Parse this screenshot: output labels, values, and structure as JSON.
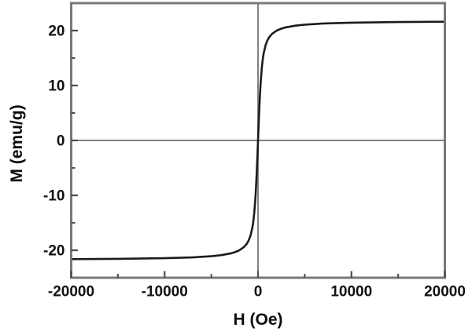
{
  "figure": {
    "background": "#ffffff"
  },
  "chart_data": {
    "type": "line",
    "title": "",
    "xlabel": "H (Oe)",
    "ylabel": "M (emu/g)",
    "xlim": [
      -20000,
      20000
    ],
    "ylim": [
      -25,
      25
    ],
    "grid": "off",
    "legend": "none",
    "x_major_ticks": [
      -20000,
      -10000,
      0,
      10000,
      20000
    ],
    "x_major_tick_labels": [
      "-20000",
      "-10000",
      "0",
      "10000",
      "20000"
    ],
    "x_minor_ticks": [
      -15000,
      -5000,
      5000,
      15000
    ],
    "y_major_ticks": [
      -20,
      -10,
      0,
      10,
      20
    ],
    "y_major_tick_labels": [
      "-20",
      "-10",
      "0",
      "10",
      "20"
    ],
    "y_minor_ticks": [
      -15,
      -5,
      5,
      15
    ],
    "reference_lines": {
      "vertical_at_x": 0,
      "horizontal_at_y": 0
    },
    "saturation_magnetization_emu_g": 21.6,
    "coercivity_oe": 0,
    "series": [
      {
        "name": "magnetization-curve",
        "points": [
          [
            -20000,
            -21.62
          ],
          [
            -15000,
            -21.56
          ],
          [
            -10000,
            -21.44
          ],
          [
            -7000,
            -21.29
          ],
          [
            -5000,
            -21.08
          ],
          [
            -4000,
            -20.9
          ],
          [
            -3000,
            -20.6
          ],
          [
            -2500,
            -20.36
          ],
          [
            -2000,
            -20.0
          ],
          [
            -1500,
            -19.4
          ],
          [
            -1200,
            -18.8
          ],
          [
            -1000,
            -18.21
          ],
          [
            -800,
            -17.3
          ],
          [
            -600,
            -15.84
          ],
          [
            -500,
            -14.71
          ],
          [
            -400,
            -13.14
          ],
          [
            -300,
            -10.95
          ],
          [
            -250,
            -9.63
          ],
          [
            -200,
            -8.05
          ],
          [
            -150,
            -6.27
          ],
          [
            -100,
            -4.29
          ],
          [
            -50,
            -2.19
          ],
          [
            0,
            0
          ],
          [
            50,
            2.19
          ],
          [
            100,
            4.29
          ],
          [
            150,
            6.27
          ],
          [
            200,
            8.05
          ],
          [
            250,
            9.63
          ],
          [
            300,
            10.95
          ],
          [
            400,
            13.14
          ],
          [
            500,
            14.71
          ],
          [
            600,
            15.84
          ],
          [
            800,
            17.3
          ],
          [
            1000,
            18.21
          ],
          [
            1200,
            18.8
          ],
          [
            1500,
            19.4
          ],
          [
            2000,
            20.0
          ],
          [
            2500,
            20.36
          ],
          [
            3000,
            20.6
          ],
          [
            4000,
            20.9
          ],
          [
            5000,
            21.08
          ],
          [
            7000,
            21.29
          ],
          [
            10000,
            21.44
          ],
          [
            15000,
            21.56
          ],
          [
            20000,
            21.62
          ]
        ]
      }
    ],
    "colors": {
      "curve": "#1b1b1b",
      "frame": "#787878",
      "reference": "#828282",
      "tick": "#4d4d4d",
      "text": "#111111",
      "background": "#ffffff"
    }
  }
}
